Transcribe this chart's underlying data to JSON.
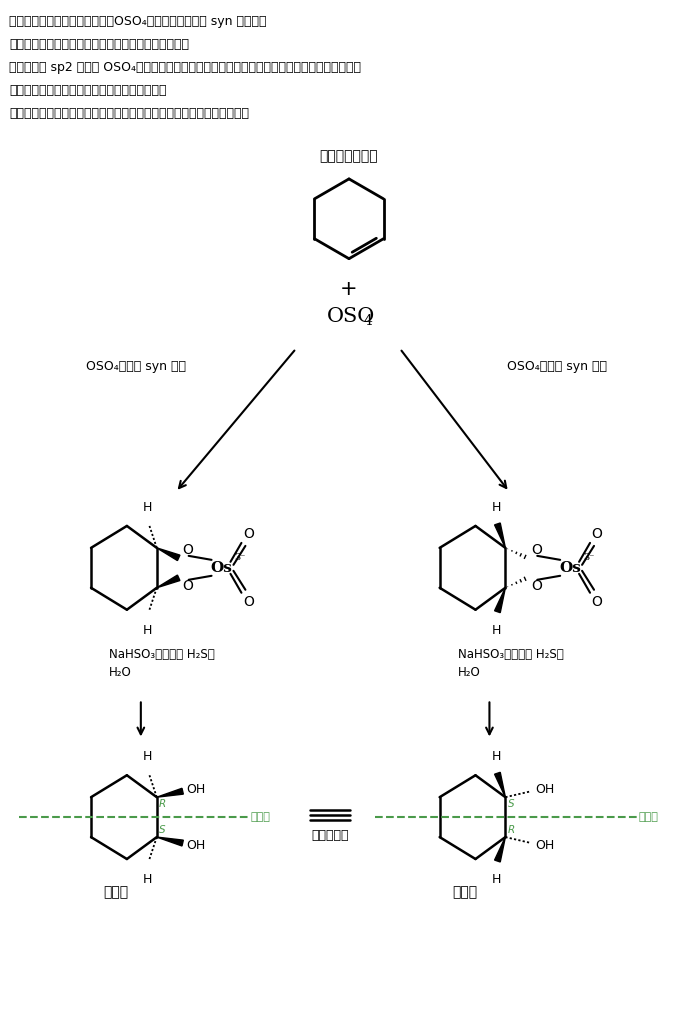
{
  "bg_color": "#ffffff",
  "text_color": "#000000",
  "line_color": "#000000",
  "green_color": "#4a9a4a",
  "top_text_lines": [
    "アルケンに四酸化オスミウム（OSO₄）の２つの酸素が syn 付加し、",
    "中間体として環状オスミウム酸エステルが生成する。",
    "アルケンの sp2 平面に OSO₄がアクセスする際、上からでも下からでも平等にアクセスできる。",
    "このことは、出発物のアルケンの構造次第で、",
    "生成物が鏡像異性体の等量混合物（ラセミ体）となることにつながる。"
  ],
  "cyclohexene_label": "シクロヘキセン",
  "left_arrow_label": "OSO₄が上に syn 付加",
  "right_arrow_label": "OSO₄が下に syn 付加",
  "meso_left": "メソ体",
  "meso_right": "メソ体",
  "symmetry_label": "対称面",
  "same_compound": "同一化合物"
}
